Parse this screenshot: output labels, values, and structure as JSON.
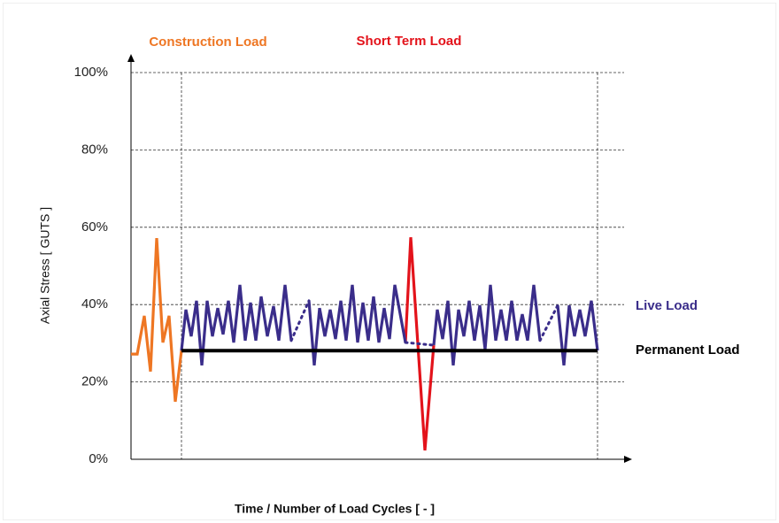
{
  "chart_data": {
    "type": "line",
    "ylabel": "Axial Stress  [ GUTS ]",
    "xlabel": "Time / Number of Load Cycles  [ - ]",
    "xlim": [
      0,
      557
    ],
    "ylim": [
      0,
      100
    ],
    "yticks": [
      {
        "value": 0,
        "label": "0%"
      },
      {
        "value": 20,
        "label": "20%"
      },
      {
        "value": 40,
        "label": "40%"
      },
      {
        "value": 60,
        "label": "60%"
      },
      {
        "value": 80,
        "label": "80%"
      },
      {
        "value": 100,
        "label": "100%"
      }
    ],
    "grid": true,
    "vlines": [
      57,
      527
    ],
    "series": [
      {
        "name": "Construction Load",
        "color": "#ee7623",
        "x": [
          0,
          7,
          15,
          22,
          29,
          36,
          43,
          50,
          57
        ],
        "values": [
          27.2,
          27.2,
          37.1,
          22.7,
          57.2,
          30.2,
          37.1,
          14.9,
          28.1
        ]
      },
      {
        "name": "Short Term Load",
        "color": "#e3131b",
        "x": [
          310,
          316,
          332,
          342
        ],
        "values": [
          30.2,
          57.4,
          2.3,
          29.5
        ]
      },
      {
        "name": "Live Load",
        "color": "#3a2d8a",
        "x": [
          57,
          62,
          68,
          74,
          80,
          86,
          92,
          98,
          104,
          110,
          116,
          123,
          129,
          135,
          141,
          147,
          154,
          161,
          167,
          174,
          181,
          191,
          201,
          207,
          213,
          219,
          225,
          231,
          237,
          243,
          250,
          256,
          262,
          268,
          274,
          280,
          286,
          292,
          298,
          310,
          326,
          342,
          346,
          352,
          358,
          364,
          370,
          376,
          382,
          388,
          394,
          400,
          406,
          412,
          418,
          424,
          430,
          436,
          442,
          448,
          455,
          462,
          472,
          482,
          489,
          495,
          501,
          507,
          513,
          520,
          527
        ],
        "values": [
          28.1,
          38.7,
          31.8,
          41.0,
          24.3,
          41.0,
          31.8,
          39.1,
          32.3,
          41.0,
          30.2,
          45.1,
          30.7,
          40.5,
          30.7,
          42.1,
          31.8,
          39.6,
          30.7,
          45.1,
          30.7,
          null,
          41.0,
          24.3,
          39.1,
          31.8,
          38.7,
          31.1,
          41.0,
          30.7,
          45.1,
          30.2,
          40.5,
          30.7,
          42.1,
          30.2,
          39.1,
          31.1,
          45.1,
          30.2,
          null,
          29.5,
          38.7,
          31.1,
          41.0,
          24.3,
          38.7,
          31.8,
          41.0,
          30.7,
          39.8,
          28.4,
          45.1,
          30.7,
          38.7,
          30.7,
          41.0,
          30.7,
          37.5,
          30.7,
          45.1,
          30.7,
          null,
          39.8,
          24.3,
          39.8,
          31.8,
          38.7,
          31.8,
          41.0,
          28.1
        ]
      },
      {
        "name": "Permanent Load",
        "color": "#000000",
        "x": [
          57,
          527
        ],
        "values": [
          28.1,
          28.1
        ]
      }
    ]
  }
}
